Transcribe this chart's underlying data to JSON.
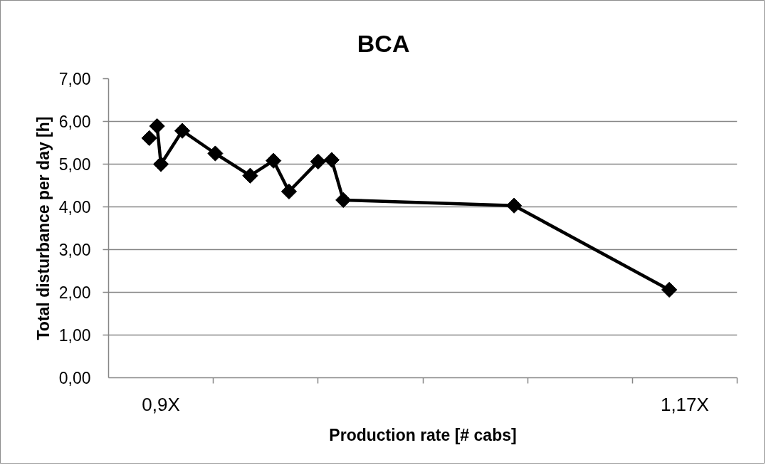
{
  "chart_data": {
    "type": "line",
    "title": "BCA",
    "xlabel": "Production rate [# cabs]",
    "ylabel": "Total disturbance per day [h]",
    "xlim": [
      0.873,
      1.197
    ],
    "xticks": [
      {
        "value": 0.873,
        "label": null
      },
      {
        "value": 0.9,
        "label": "0,9X"
      },
      {
        "value": 0.927,
        "label": null
      },
      {
        "value": 0.981,
        "label": null
      },
      {
        "value": 1.035,
        "label": null
      },
      {
        "value": 1.089,
        "label": null
      },
      {
        "value": 1.143,
        "label": null
      },
      {
        "value": 1.17,
        "label": "1,17X"
      },
      {
        "value": 1.197,
        "label": null
      }
    ],
    "ylim": [
      0,
      7
    ],
    "yticks": [
      {
        "value": 0,
        "label": "0,00"
      },
      {
        "value": 1,
        "label": "1,00"
      },
      {
        "value": 2,
        "label": "2,00"
      },
      {
        "value": 3,
        "label": "3,00"
      },
      {
        "value": 4,
        "label": "4,00"
      },
      {
        "value": 5,
        "label": "5,00"
      },
      {
        "value": 6,
        "label": "6,00"
      },
      {
        "value": 7,
        "label": "7,00"
      }
    ],
    "grid": "y",
    "marker": "diamond",
    "line_style": "solid",
    "series": [
      {
        "type": "scatter",
        "color": "#000000",
        "x": [
          0.894
        ],
        "values": [
          5.61
        ]
      },
      {
        "color": "#000000",
        "x": [
          0.898,
          0.9,
          0.911,
          0.928,
          0.946,
          0.958,
          0.966,
          0.981,
          0.988,
          0.994,
          1.082,
          1.162
        ],
        "values": [
          5.89,
          5.0,
          5.78,
          5.25,
          4.73,
          5.08,
          4.36,
          5.06,
          5.1,
          4.16,
          4.03,
          2.06
        ]
      }
    ]
  }
}
